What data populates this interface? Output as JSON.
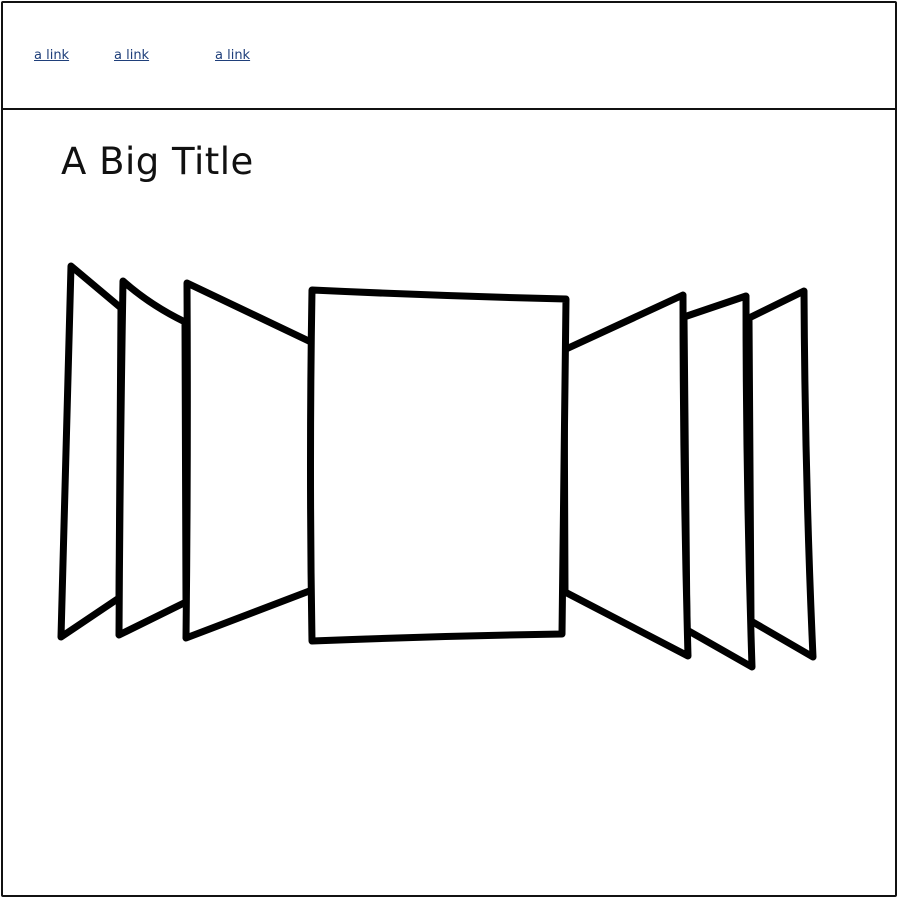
{
  "nav": {
    "links": [
      "a link",
      "a link",
      "a link"
    ]
  },
  "main": {
    "title": "A Big Title"
  },
  "carousel": {
    "slide_count": 7,
    "active_index": 3
  },
  "colors": {
    "link": "#1f3f7a",
    "stroke": "#000000",
    "background": "#ffffff"
  }
}
